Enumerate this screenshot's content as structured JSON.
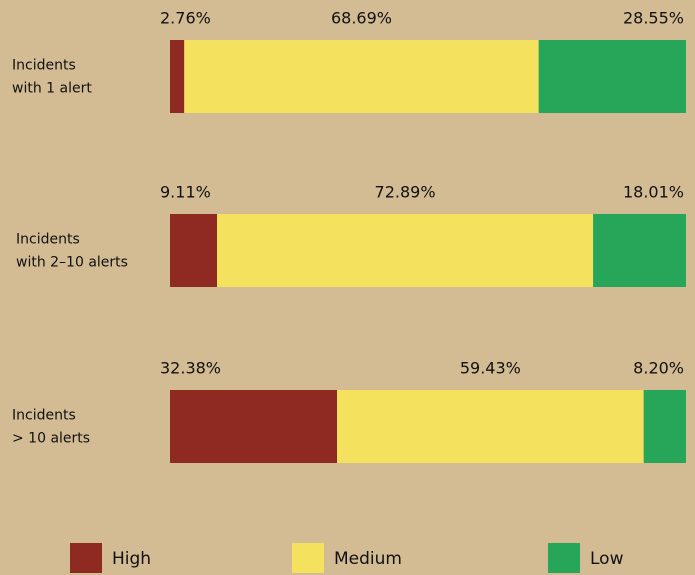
{
  "chart_data": {
    "type": "stacked_bar_horizontal",
    "categories": [
      [
        "Incidents",
        "with 1 alert"
      ],
      [
        "Incidents",
        "with 2–10 alerts"
      ],
      [
        "Incidents",
        "> 10 alerts"
      ]
    ],
    "series": [
      {
        "name": "High",
        "color": "#8e2a22",
        "values": [
          2.76,
          9.11,
          32.38
        ],
        "value_labels": [
          "2.76%",
          "9.11%",
          "32.38%"
        ]
      },
      {
        "name": "Medium",
        "color": "#f4e25e",
        "values": [
          68.69,
          72.89,
          59.43
        ],
        "value_labels": [
          "68.69%",
          "72.89%",
          "59.43%"
        ]
      },
      {
        "name": "Low",
        "color": "#27a65a",
        "values": [
          28.55,
          18.01,
          8.2
        ],
        "value_labels": [
          "28.55%",
          "18.01%",
          "8.20%"
        ]
      }
    ],
    "legend": "bottom"
  }
}
